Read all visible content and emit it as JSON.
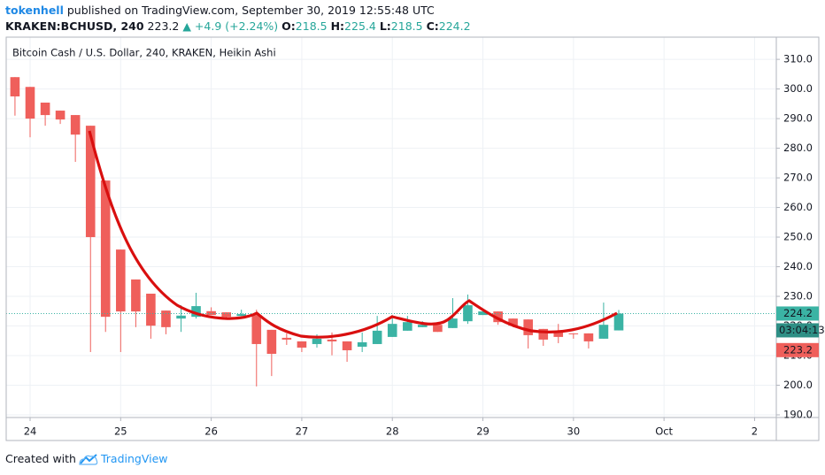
{
  "header": {
    "publisher": "tokenhell",
    "published": "published on TradingView.com, September 30, 2019 12:55:48 UTC",
    "symbol": "KRAKEN:BCHUSD, 240",
    "price": 223.2,
    "change": "▲ +4.9 (+2.24%)",
    "ohlc": [
      {
        "label": "O:",
        "value": 218.5
      },
      {
        "label": "H:",
        "value": 225.4
      },
      {
        "label": "L:",
        "value": 218.5
      },
      {
        "label": "C:",
        "value": 224.2
      }
    ]
  },
  "chart_data": {
    "type": "candlestick",
    "title": "Bitcoin Cash / U.S. Dollar, 240, KRAKEN, Heikin Ashi",
    "x": [
      23.833,
      24,
      24.167,
      24.333,
      24.5,
      24.667,
      24.833,
      25,
      25.167,
      25.333,
      25.5,
      25.667,
      25.833,
      26,
      26.167,
      26.333,
      26.5,
      26.667,
      26.833,
      27,
      27.167,
      27.333,
      27.5,
      27.667,
      27.833,
      28,
      28.167,
      28.333,
      28.5,
      28.667,
      28.833,
      29,
      29.167,
      29.333,
      29.5,
      29.667,
      29.833,
      30,
      30.167,
      30.333,
      30.5
    ],
    "open": [
      304,
      300.7,
      295.4,
      292.7,
      291.2,
      287.6,
      269.1,
      245.8,
      235.7,
      230.9,
      225.2,
      222.5,
      223.1,
      225,
      224.6,
      223.4,
      223.7,
      218.7,
      216,
      214.8,
      213.9,
      215.4,
      214.8,
      213,
      213.9,
      216.3,
      218.4,
      219.6,
      220.4,
      219.3,
      221.6,
      223.7,
      224.9,
      222.5,
      222.2,
      219,
      218,
      217.5,
      217.5,
      215.7,
      218.5
    ],
    "high": [
      304,
      300.7,
      295.4,
      292.7,
      291.2,
      287.6,
      269.1,
      245.8,
      235.7,
      230.9,
      225.2,
      227,
      231.2,
      226.3,
      224.6,
      225.5,
      225.5,
      218.7,
      217.5,
      214.8,
      217.2,
      217.8,
      214.8,
      217.8,
      223.4,
      223.7,
      223.4,
      221.6,
      220.4,
      229.4,
      230.6,
      225.8,
      224.9,
      222.5,
      222.2,
      219,
      220.7,
      217.5,
      217.5,
      227.9,
      225.4
    ],
    "low": [
      291,
      283.7,
      287.6,
      288.2,
      275.4,
      211.2,
      218,
      211.2,
      219.6,
      215.7,
      217.2,
      218,
      222.5,
      223.7,
      222.8,
      223.4,
      199.6,
      203.1,
      213.6,
      211.2,
      212.7,
      210.1,
      207.9,
      211.2,
      213.9,
      216.3,
      218.4,
      219.6,
      218,
      219.3,
      220.7,
      223.7,
      220.4,
      219.6,
      212.4,
      213.3,
      214.2,
      215.7,
      212.4,
      215.7,
      218.5
    ],
    "close": [
      297.5,
      290,
      291.2,
      289.7,
      284.6,
      250,
      223.1,
      224.9,
      224.9,
      220.1,
      219.6,
      223.5,
      226.7,
      223.7,
      223.1,
      224,
      213.9,
      210.6,
      215.4,
      212.7,
      215.7,
      214.8,
      211.8,
      214.5,
      218.4,
      220.7,
      221.3,
      220.4,
      218,
      222.5,
      227,
      224.9,
      221.3,
      220.1,
      216.9,
      215.4,
      216.3,
      217.2,
      214.8,
      220.4,
      224.2
    ],
    "up_color": "#3bb3a4",
    "down_color": "#ef5f5b",
    "xlim": [
      23.736,
      32.24
    ],
    "ylim": [
      189.1,
      317.5
    ],
    "xticks": [
      24,
      25,
      26,
      27,
      28,
      29,
      30,
      {
        "value": 31,
        "label": "Oct"
      },
      {
        "value": 32,
        "label": "2"
      }
    ],
    "yticks": [
      {
        "value": 190,
        "label": "190.0"
      },
      {
        "value": 200,
        "label": "200.0"
      },
      {
        "value": 210,
        "label": "210.0"
      },
      {
        "value": 220,
        "label": "220.0"
      },
      {
        "value": 230,
        "label": "230.0"
      },
      {
        "value": 240,
        "label": "240.0"
      },
      {
        "value": 250,
        "label": "250.0"
      },
      {
        "value": 260,
        "label": "260.0"
      },
      {
        "value": 270,
        "label": "270.0"
      },
      {
        "value": 280,
        "label": "280.0"
      },
      {
        "value": 290,
        "label": "290.0"
      },
      {
        "value": 300,
        "label": "300.0"
      },
      {
        "value": 310,
        "label": "310.0"
      }
    ],
    "grid": true,
    "last_close": 224.2,
    "countdown": "03:04:13",
    "last_price": 223.2
  },
  "footer": {
    "text": "Created with",
    "brand": "TradingView"
  }
}
